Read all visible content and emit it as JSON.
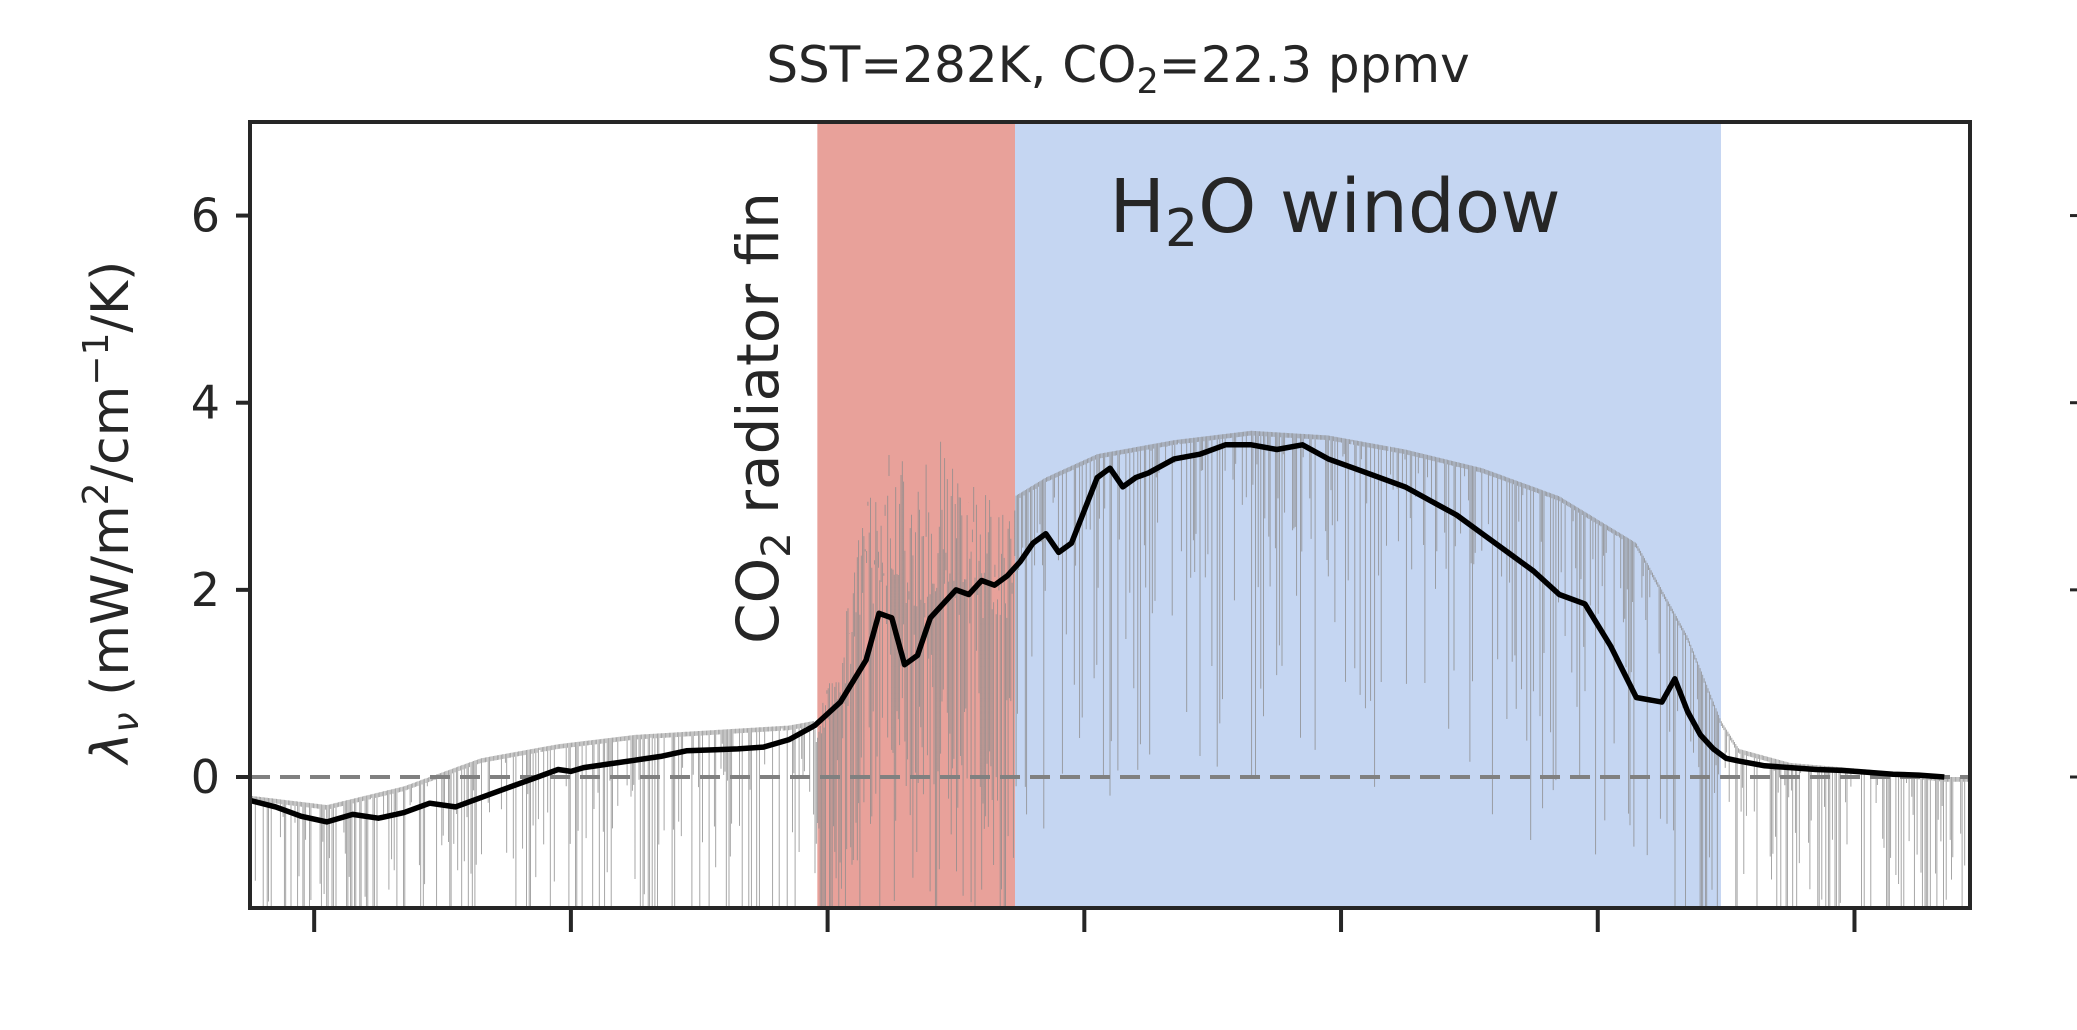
{
  "chart_data": {
    "type": "line",
    "title_parts": {
      "a": "SST=282K, CO",
      "sub": "2",
      "b": "=22.3 ppmv"
    },
    "ylabel_parts": {
      "lam": "λ",
      "nu": "ν",
      "a": " (mW/m",
      "sup2": "2",
      "b": "/cm",
      "supm1": "−1",
      "c": "/K)"
    },
    "xlabel": "",
    "xlim": [
      0,
      6.7
    ],
    "ylim": [
      -1.4,
      7.0
    ],
    "yticks": [
      0,
      2,
      4,
      6
    ],
    "ytick_labels": [
      "0",
      "2",
      "4",
      "6"
    ],
    "xticks": [
      0.25,
      1.25,
      2.25,
      3.25,
      4.25,
      5.25,
      6.25
    ],
    "grid": false,
    "colors": {
      "co2_band": "#e8a19a",
      "h2o_band": "#c5d6f2",
      "co2_text": "#d9534f",
      "h2o_text": "#5b87d9",
      "smoothed_line": "#000000",
      "raw_spectrum": "#8c8c8c",
      "zero_line": "#808080"
    },
    "bands": [
      {
        "name": "co2",
        "x_range": [
          2.21,
          2.98
        ]
      },
      {
        "name": "h2o",
        "x_range": [
          2.98,
          5.73
        ]
      }
    ],
    "annotations": {
      "co2_label_parts": {
        "a": "CO",
        "sub": "2",
        "b": " radiator fin"
      },
      "h2o_label_parts": {
        "a": "H",
        "sub": "2",
        "b": "O window"
      }
    },
    "reference_line_y": 0,
    "series": [
      {
        "style": "smoothed",
        "x": [
          0.0,
          0.1,
          0.2,
          0.3,
          0.4,
          0.5,
          0.6,
          0.7,
          0.8,
          0.9,
          1.0,
          1.1,
          1.2,
          1.25,
          1.3,
          1.4,
          1.5,
          1.6,
          1.7,
          1.8,
          1.9,
          2.0,
          2.1,
          2.2,
          2.3,
          2.4,
          2.45,
          2.5,
          2.55,
          2.6,
          2.65,
          2.7,
          2.75,
          2.8,
          2.85,
          2.9,
          2.95,
          3.0,
          3.05,
          3.1,
          3.15,
          3.2,
          3.3,
          3.35,
          3.4,
          3.45,
          3.5,
          3.6,
          3.7,
          3.8,
          3.9,
          4.0,
          4.1,
          4.2,
          4.3,
          4.4,
          4.5,
          4.6,
          4.7,
          4.8,
          4.9,
          5.0,
          5.1,
          5.2,
          5.3,
          5.4,
          5.5,
          5.55,
          5.6,
          5.65,
          5.7,
          5.75,
          5.8,
          5.9,
          6.0,
          6.1,
          6.2,
          6.3,
          6.4,
          6.5,
          6.6
        ],
        "y": [
          -0.25,
          -0.32,
          -0.42,
          -0.48,
          -0.4,
          -0.44,
          -0.38,
          -0.28,
          -0.32,
          -0.22,
          -0.12,
          -0.02,
          0.08,
          0.06,
          0.1,
          0.14,
          0.18,
          0.22,
          0.28,
          0.29,
          0.3,
          0.32,
          0.4,
          0.55,
          0.8,
          1.25,
          1.75,
          1.7,
          1.2,
          1.3,
          1.7,
          1.85,
          2.0,
          1.95,
          2.1,
          2.05,
          2.15,
          2.3,
          2.5,
          2.6,
          2.4,
          2.5,
          3.2,
          3.3,
          3.1,
          3.2,
          3.25,
          3.4,
          3.45,
          3.55,
          3.55,
          3.5,
          3.55,
          3.4,
          3.3,
          3.2,
          3.1,
          2.95,
          2.8,
          2.6,
          2.4,
          2.2,
          1.95,
          1.85,
          1.4,
          0.85,
          0.8,
          1.05,
          0.7,
          0.45,
          0.3,
          0.2,
          0.17,
          0.12,
          0.1,
          0.08,
          0.07,
          0.05,
          0.03,
          0.02,
          0.0
        ]
      },
      {
        "style": "raw",
        "x": [
          0.0,
          0.3,
          0.6,
          0.9,
          1.2,
          1.5,
          1.8,
          2.1,
          2.2,
          2.3,
          2.4,
          2.5,
          2.6,
          2.7,
          2.8,
          2.9,
          2.98,
          3.1,
          3.3,
          3.6,
          3.9,
          4.2,
          4.5,
          4.8,
          5.1,
          5.4,
          5.6,
          5.73,
          5.8,
          6.0,
          6.3,
          6.6
        ],
        "y": [
          -0.2,
          -0.3,
          -0.1,
          0.2,
          0.35,
          0.45,
          0.5,
          0.55,
          0.6,
          1.5,
          3.0,
          3.6,
          3.2,
          3.7,
          3.2,
          3.0,
          3.0,
          3.2,
          3.45,
          3.6,
          3.7,
          3.65,
          3.5,
          3.3,
          3.0,
          2.5,
          1.5,
          0.6,
          0.3,
          0.15,
          0.08,
          0.0
        ]
      }
    ]
  }
}
